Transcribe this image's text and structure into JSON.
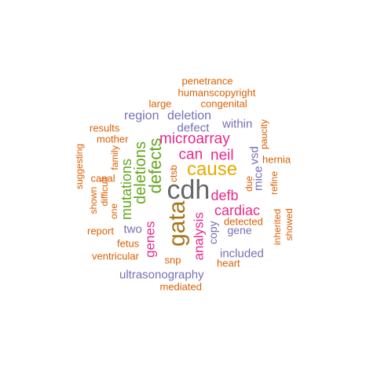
{
  "palette": {
    "orange": "#d95f02",
    "purple": "#7570b3",
    "magenta": "#e7298a",
    "green": "#66a61e",
    "gold": "#e6ab02",
    "brown": "#a6761d",
    "gray": "#666666"
  },
  "words": [
    {
      "text": "cdh",
      "color": "gray",
      "orientation": "horizontal"
    },
    {
      "text": "gata",
      "color": "brown",
      "orientation": "vertical"
    },
    {
      "text": "cause",
      "color": "gold",
      "orientation": "horizontal"
    },
    {
      "text": "defects",
      "color": "green",
      "orientation": "vertical"
    },
    {
      "text": "deletions",
      "color": "green",
      "orientation": "vertical"
    },
    {
      "text": "mutations",
      "color": "green",
      "orientation": "vertical"
    },
    {
      "text": "microarray",
      "color": "magenta",
      "orientation": "horizontal"
    },
    {
      "text": "can",
      "color": "magenta",
      "orientation": "horizontal"
    },
    {
      "text": "neil",
      "color": "magenta",
      "orientation": "horizontal"
    },
    {
      "text": "defb",
      "color": "magenta",
      "orientation": "horizontal"
    },
    {
      "text": "cardiac",
      "color": "magenta",
      "orientation": "horizontal"
    },
    {
      "text": "analysis",
      "color": "magenta",
      "orientation": "vertical"
    },
    {
      "text": "genes",
      "color": "magenta",
      "orientation": "vertical"
    },
    {
      "text": "region",
      "color": "purple",
      "orientation": "horizontal"
    },
    {
      "text": "deletion",
      "color": "purple",
      "orientation": "horizontal"
    },
    {
      "text": "defect",
      "color": "purple",
      "orientation": "horizontal"
    },
    {
      "text": "within",
      "color": "purple",
      "orientation": "horizontal"
    },
    {
      "text": "vsd",
      "color": "purple",
      "orientation": "vertical"
    },
    {
      "text": "mice",
      "color": "purple",
      "orientation": "vertical"
    },
    {
      "text": "copy",
      "color": "purple",
      "orientation": "vertical"
    },
    {
      "text": "gene",
      "color": "purple",
      "orientation": "horizontal"
    },
    {
      "text": "two",
      "color": "purple",
      "orientation": "horizontal"
    },
    {
      "text": "included",
      "color": "purple",
      "orientation": "horizontal"
    },
    {
      "text": "ultrasonography",
      "color": "purple",
      "orientation": "horizontal"
    },
    {
      "text": "penetrance",
      "color": "orange",
      "orientation": "horizontal"
    },
    {
      "text": "humanscopyright",
      "color": "orange",
      "orientation": "horizontal"
    },
    {
      "text": "large",
      "color": "orange",
      "orientation": "horizontal"
    },
    {
      "text": "congenital",
      "color": "orange",
      "orientation": "horizontal"
    },
    {
      "text": "results",
      "color": "orange",
      "orientation": "horizontal"
    },
    {
      "text": "mother",
      "color": "orange",
      "orientation": "horizontal"
    },
    {
      "text": "family",
      "color": "orange",
      "orientation": "vertical"
    },
    {
      "text": "suggesting",
      "color": "orange",
      "orientation": "vertical"
    },
    {
      "text": "canal",
      "color": "orange",
      "orientation": "horizontal"
    },
    {
      "text": "difficult",
      "color": "orange",
      "orientation": "vertical"
    },
    {
      "text": "shown",
      "color": "orange",
      "orientation": "vertical"
    },
    {
      "text": "one",
      "color": "orange",
      "orientation": "vertical"
    },
    {
      "text": "report",
      "color": "orange",
      "orientation": "horizontal"
    },
    {
      "text": "fetus",
      "color": "orange",
      "orientation": "horizontal"
    },
    {
      "text": "ventricular",
      "color": "orange",
      "orientation": "horizontal"
    },
    {
      "text": "snp",
      "color": "orange",
      "orientation": "horizontal"
    },
    {
      "text": "heart",
      "color": "orange",
      "orientation": "horizontal"
    },
    {
      "text": "mediated",
      "color": "orange",
      "orientation": "horizontal"
    },
    {
      "text": "ctsb",
      "color": "orange",
      "orientation": "vertical"
    },
    {
      "text": "paucity",
      "color": "orange",
      "orientation": "vertical"
    },
    {
      "text": "hernia",
      "color": "orange",
      "orientation": "horizontal"
    },
    {
      "text": "due",
      "color": "orange",
      "orientation": "vertical"
    },
    {
      "text": "refine",
      "color": "orange",
      "orientation": "vertical"
    },
    {
      "text": "detected",
      "color": "orange",
      "orientation": "horizontal"
    },
    {
      "text": "inherited",
      "color": "orange",
      "orientation": "vertical"
    },
    {
      "text": "showed",
      "color": "orange",
      "orientation": "vertical"
    }
  ]
}
